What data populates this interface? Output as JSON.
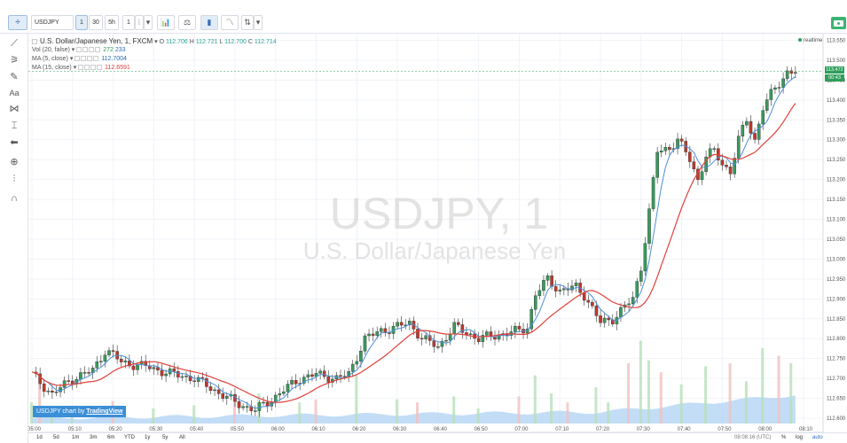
{
  "toolbar": {
    "symbol": "USDJPY",
    "interval": "1",
    "compare_30": "30",
    "compare_5h": "5h",
    "compare_1": "1",
    "more": "⋮"
  },
  "legend": {
    "title": "U.S. Dollar/Japanese Yen, 1, FXCM",
    "o_label": "O",
    "o_value": "112.706",
    "h_label": "H",
    "h_value": "112.721",
    "l_label": "L",
    "l_value": "112.700",
    "c_label": "C",
    "c_value": "112.714",
    "vol_label": "Vol (20, false)",
    "vol_value1": "272",
    "vol_value2": "233",
    "ma5_label": "MA (5, close)",
    "ma5_value": "112.7004",
    "ma15_label": "MA (15, close)",
    "ma15_value": "112.6591"
  },
  "realtime_label": "realtime",
  "price_tags": {
    "last": "113.472",
    "countdown": "00:43"
  },
  "watermark": {
    "symbol": "USDJPY, 1",
    "name": "U.S. Dollar/Japanese Yen"
  },
  "branding": {
    "prefix": "USDJPY chart by",
    "brand": "TradingView"
  },
  "bottom_bar": {
    "ranges": [
      "1d",
      "5d",
      "1m",
      "3m",
      "6m",
      "YTD",
      "1y",
      "5y",
      "All"
    ],
    "clock": "08:08:16 (UTC)",
    "percent": "%",
    "log": "log",
    "auto": "auto"
  },
  "chart_data": {
    "type": "candlestick",
    "y_ticks": [
      113.55,
      113.5,
      113.45,
      113.4,
      113.35,
      113.3,
      113.25,
      113.2,
      113.15,
      113.1,
      113.05,
      113.0,
      112.95,
      112.9,
      112.85,
      112.8,
      112.75,
      112.7,
      112.65,
      112.6
    ],
    "y_tick_labels": [
      "113.550",
      "113.500",
      "113.450",
      "113.400",
      "113.350",
      "113.300",
      "113.250",
      "113.200",
      "113.150",
      "113.100",
      "113.050",
      "113.000",
      "112.950",
      "112.900",
      "112.850",
      "112.800",
      "112.750",
      "112.700",
      "112.650",
      "112.600"
    ],
    "ylim": [
      112.58,
      113.56
    ],
    "x_labels": [
      "05:00",
      "05:10",
      "05:20",
      "05:30",
      "05:40",
      "05:50",
      "06:00",
      "06:10",
      "06:20",
      "06:30",
      "06:40",
      "06:50",
      "07:00",
      "07:10",
      "07:20",
      "07:30",
      "07:40",
      "07:50",
      "08:00",
      "08:10"
    ],
    "x_label_minutes": [
      0,
      10,
      20,
      30,
      40,
      50,
      60,
      70,
      80,
      90,
      100,
      110,
      120,
      130,
      140,
      150,
      160,
      170,
      180,
      190
    ],
    "last_price": 113.472,
    "close_anchors": [
      [
        0,
        112.71
      ],
      [
        5,
        112.66
      ],
      [
        10,
        112.7
      ],
      [
        15,
        112.72
      ],
      [
        18,
        112.77
      ],
      [
        20,
        112.76
      ],
      [
        22,
        112.74
      ],
      [
        28,
        112.73
      ],
      [
        35,
        112.71
      ],
      [
        40,
        112.7
      ],
      [
        45,
        112.67
      ],
      [
        50,
        112.64
      ],
      [
        55,
        112.62
      ],
      [
        58,
        112.64
      ],
      [
        62,
        112.67
      ],
      [
        66,
        112.7
      ],
      [
        70,
        112.71
      ],
      [
        75,
        112.7
      ],
      [
        78,
        112.71
      ],
      [
        82,
        112.8
      ],
      [
        86,
        112.82
      ],
      [
        90,
        112.83
      ],
      [
        93,
        112.84
      ],
      [
        96,
        112.8
      ],
      [
        100,
        112.78
      ],
      [
        104,
        112.83
      ],
      [
        110,
        112.8
      ],
      [
        115,
        112.81
      ],
      [
        120,
        112.82
      ],
      [
        122,
        112.83
      ],
      [
        124,
        112.91
      ],
      [
        127,
        112.95
      ],
      [
        130,
        112.92
      ],
      [
        134,
        112.93
      ],
      [
        136,
        112.91
      ],
      [
        140,
        112.84
      ],
      [
        143,
        112.85
      ],
      [
        146,
        112.88
      ],
      [
        148,
        112.9
      ],
      [
        150,
        112.98
      ],
      [
        152,
        113.12
      ],
      [
        154,
        113.27
      ],
      [
        157,
        113.28
      ],
      [
        159,
        113.3
      ],
      [
        162,
        113.25
      ],
      [
        164,
        113.2
      ],
      [
        166,
        113.26
      ],
      [
        168,
        113.27
      ],
      [
        170,
        113.24
      ],
      [
        172,
        113.22
      ],
      [
        174,
        113.3
      ],
      [
        176,
        113.35
      ],
      [
        178,
        113.3
      ],
      [
        180,
        113.38
      ],
      [
        183,
        113.43
      ],
      [
        186,
        113.47
      ],
      [
        188,
        113.47
      ]
    ],
    "ma5_color": "#4a90d9",
    "ma15_color": "#e2403a",
    "up_color": "#3a9a5c",
    "down_color": "#c0392b",
    "volume_area_color": "#a9cff3",
    "volume_bars": [
      [
        0,
        14
      ],
      [
        2,
        26
      ],
      [
        5,
        10
      ],
      [
        10,
        8
      ],
      [
        20,
        15
      ],
      [
        30,
        10
      ],
      [
        40,
        12
      ],
      [
        50,
        14
      ],
      [
        56,
        20
      ],
      [
        66,
        14
      ],
      [
        70,
        16
      ],
      [
        80,
        32
      ],
      [
        90,
        16
      ],
      [
        95,
        14
      ],
      [
        104,
        18
      ],
      [
        110,
        10
      ],
      [
        120,
        18
      ],
      [
        124,
        32
      ],
      [
        128,
        20
      ],
      [
        132,
        14
      ],
      [
        139,
        24
      ],
      [
        142,
        14
      ],
      [
        147,
        40
      ],
      [
        150,
        55
      ],
      [
        152,
        42
      ],
      [
        155,
        34
      ],
      [
        160,
        26
      ],
      [
        166,
        38
      ],
      [
        172,
        40
      ],
      [
        176,
        28
      ],
      [
        180,
        50
      ],
      [
        184,
        45
      ],
      [
        187,
        40
      ]
    ]
  }
}
